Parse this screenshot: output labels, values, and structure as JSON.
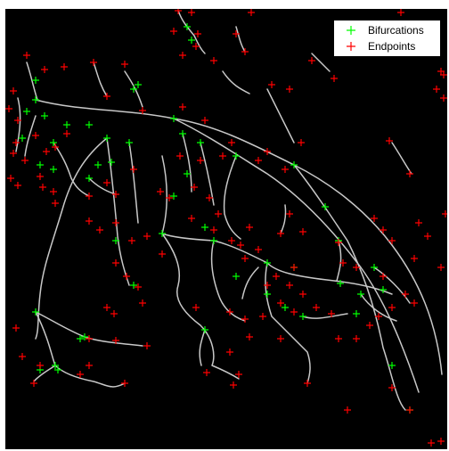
{
  "legend": {
    "items": [
      {
        "label": "Bifurcations",
        "color": "#00ff00",
        "marker": "plus"
      },
      {
        "label": "Endpoints",
        "color": "#ff0000",
        "marker": "plus"
      }
    ]
  },
  "colors": {
    "background": "#000000",
    "vessel": "#c8c8c8",
    "bifurcation": "#00ff00",
    "endpoint": "#ff0000"
  }
}
